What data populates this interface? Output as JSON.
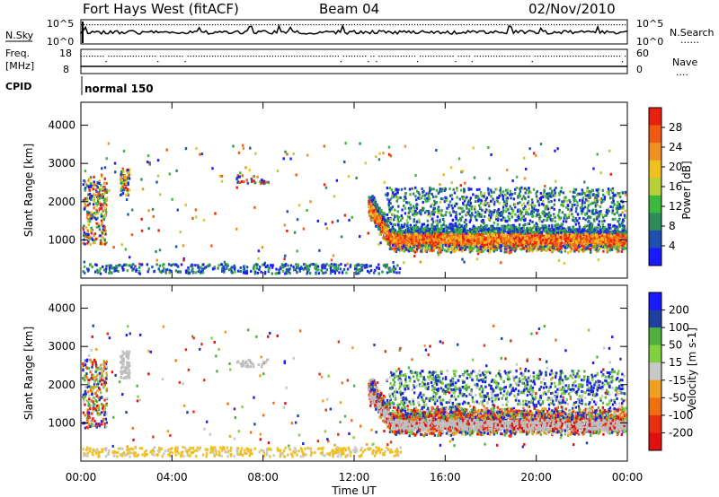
{
  "header": {
    "title": "Fort Hays West (fitACF)",
    "beam": "Beam 04",
    "date": "02/Nov/2010"
  },
  "noise_panel": {
    "left_label": "N.Sky",
    "left_ticks": [
      "10^5",
      "10^0"
    ],
    "right_label": "N.Search",
    "right_ticks": [
      "10^5",
      "10^0"
    ],
    "dotted_legend": "......"
  },
  "freq_panel": {
    "label_line1": "Freq.",
    "label_line2": "[MHz]",
    "left_ticks": [
      "18",
      "8"
    ],
    "right_label": "Nave",
    "right_ticks": [
      "60",
      "0"
    ],
    "dotted_legend": "...."
  },
  "cpid": {
    "label": "CPID",
    "value": "normal 150"
  },
  "colors": {
    "power_scale": [
      "#1a1aff",
      "#1e4fb0",
      "#2e8a5a",
      "#3cb83c",
      "#b8d038",
      "#f0c020",
      "#f09020",
      "#f05a10",
      "#e82010"
    ],
    "velocity_scale": [
      "#1a1aff",
      "#2040a0",
      "#50b040",
      "#80d040",
      "#c8c8c8",
      "#f0a020",
      "#f07010",
      "#e83010",
      "#e01010"
    ],
    "ground_scatter": "#bebebe"
  },
  "chart_data": [
    {
      "type": "heatmap",
      "name_hint": "power",
      "ylabel": "Slant Range [km]",
      "ylim": [
        0,
        4600
      ],
      "yticks": [
        "1000",
        "2000",
        "3000",
        "4000"
      ],
      "xlim_hours": [
        0,
        24
      ],
      "colorbar": {
        "label": "Power [dB]",
        "ticks": [
          "28",
          "24",
          "20",
          "16",
          "12",
          "8",
          "4"
        ]
      }
    },
    {
      "type": "heatmap",
      "name_hint": "velocity",
      "ylabel": "Slant Range [km]",
      "ylim": [
        0,
        4600
      ],
      "yticks": [
        "1000",
        "2000",
        "3000",
        "4000"
      ],
      "xlim_hours": [
        0,
        24
      ],
      "colorbar": {
        "label": "Velocity [m s-1]",
        "ticks": [
          "200",
          "100",
          "50",
          "15",
          "-15",
          "-50",
          "-100",
          "-200"
        ]
      }
    }
  ],
  "x_axis": {
    "label": "Time UT",
    "ticks": [
      "00:00",
      "04:00",
      "08:00",
      "12:00",
      "16:00",
      "20:00",
      "00:00"
    ]
  }
}
